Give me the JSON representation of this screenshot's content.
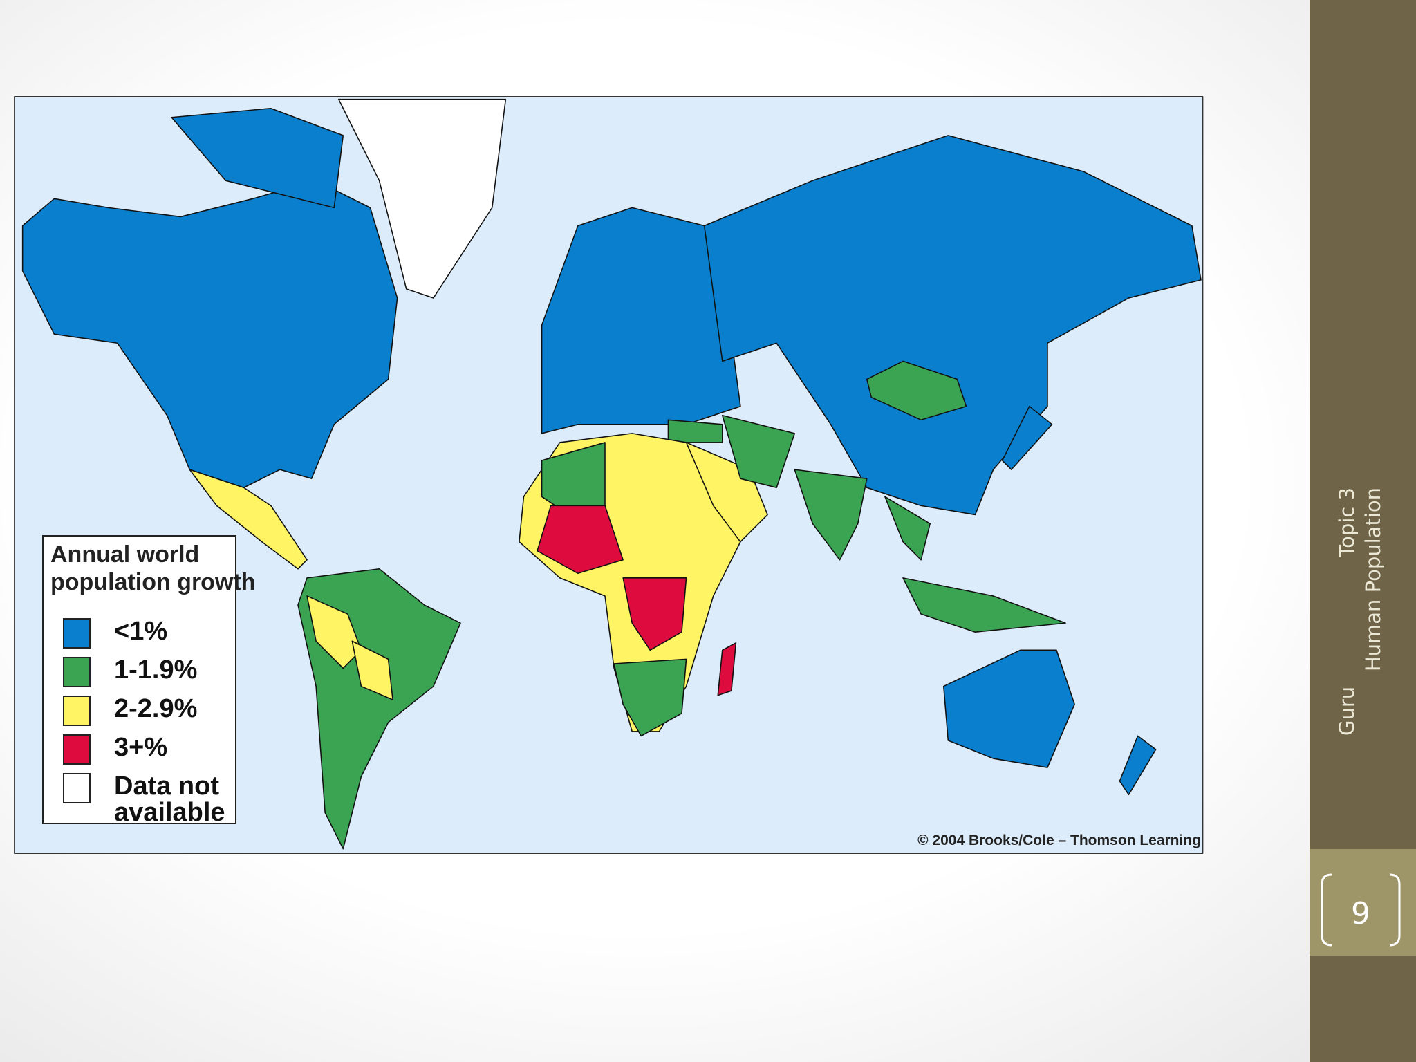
{
  "legend": {
    "title": "Annual world population growth",
    "items": [
      {
        "label": "<1%",
        "color": "#0a7fce"
      },
      {
        "label": "1-1.9%",
        "color": "#3aa453"
      },
      {
        "label": "2-2.9%",
        "color": "#fff463"
      },
      {
        "label": "3+%",
        "color": "#de0b3e"
      },
      {
        "label": "Data not available",
        "color": "#ffffff"
      }
    ]
  },
  "credit": "© 2004 Brooks/Cole – Thomson Learning",
  "sidebar": {
    "author": "Guru",
    "topic": "Topic 3",
    "subtitle": "Human Population",
    "page": "9"
  }
}
